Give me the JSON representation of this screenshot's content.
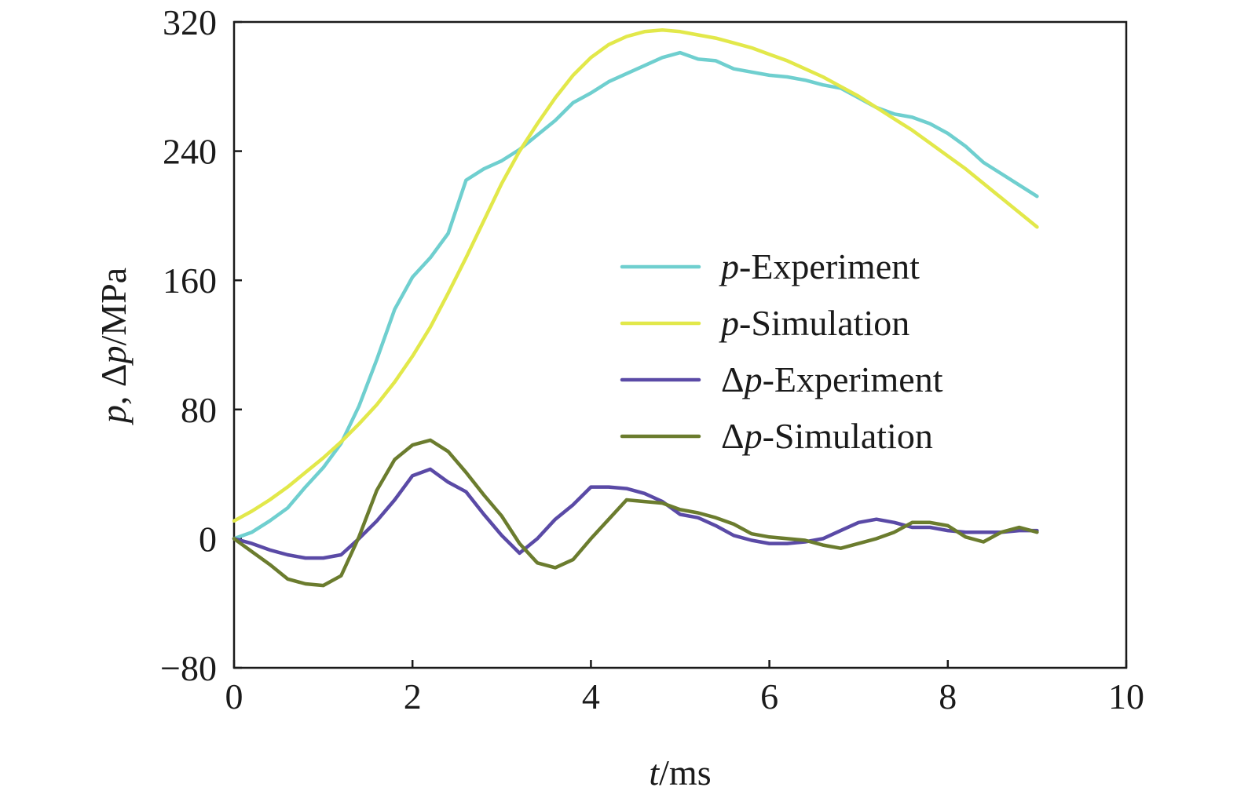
{
  "chart_data": {
    "type": "line",
    "xlabel_var": "t",
    "xlabel_unit": "/ms",
    "ylabel_var1": "p",
    "ylabel_sep": ", Δ",
    "ylabel_var2": "p",
    "ylabel_unit": "/MPa",
    "xlim": [
      0,
      10
    ],
    "ylim": [
      -80,
      320
    ],
    "x_ticks": [
      0,
      2,
      4,
      6,
      8,
      10
    ],
    "y_ticks": [
      -80,
      0,
      80,
      160,
      240,
      320
    ],
    "x_tick_labels": [
      "0",
      "2",
      "4",
      "6",
      "8",
      "10"
    ],
    "y_tick_labels": [
      "−80",
      "0",
      "80",
      "160",
      "240",
      "320"
    ],
    "grid": false,
    "legend_position": "center-right",
    "series": [
      {
        "name_prefix": "",
        "name_var": "p",
        "name_suffix": "-Experiment",
        "color": "#6fcfcf",
        "x": [
          0,
          0.2,
          0.4,
          0.6,
          0.8,
          1.0,
          1.2,
          1.4,
          1.6,
          1.8,
          2.0,
          2.2,
          2.4,
          2.6,
          2.8,
          3.0,
          3.2,
          3.4,
          3.6,
          3.8,
          4.0,
          4.2,
          4.4,
          4.6,
          4.8,
          5.0,
          5.2,
          5.4,
          5.6,
          5.8,
          6.0,
          6.2,
          6.4,
          6.6,
          6.8,
          7.0,
          7.2,
          7.4,
          7.6,
          7.8,
          8.0,
          8.2,
          8.4,
          8.6,
          8.8,
          9.0
        ],
        "y": [
          0,
          4,
          11,
          19,
          32,
          44,
          59,
          82,
          111,
          142,
          162,
          174,
          189,
          222,
          229,
          234,
          241,
          250,
          259,
          270,
          276,
          283,
          288,
          293,
          298,
          301,
          297,
          296,
          291,
          289,
          287,
          286,
          284,
          281,
          279,
          273,
          267,
          263,
          261,
          257,
          251,
          243,
          233,
          226,
          219,
          212
        ]
      },
      {
        "name_prefix": "",
        "name_var": "p",
        "name_suffix": "-Simulation",
        "color": "#e2e84a",
        "x": [
          0,
          0.2,
          0.4,
          0.6,
          0.8,
          1.0,
          1.2,
          1.4,
          1.6,
          1.8,
          2.0,
          2.2,
          2.4,
          2.6,
          2.8,
          3.0,
          3.2,
          3.4,
          3.6,
          3.8,
          4.0,
          4.2,
          4.4,
          4.6,
          4.8,
          5.0,
          5.2,
          5.4,
          5.6,
          5.8,
          6.0,
          6.2,
          6.4,
          6.6,
          6.8,
          7.0,
          7.2,
          7.4,
          7.6,
          7.8,
          8.0,
          8.2,
          8.4,
          8.6,
          8.8,
          9.0
        ],
        "y": [
          11,
          17,
          24,
          32,
          41,
          50,
          60,
          71,
          83,
          97,
          113,
          131,
          152,
          174,
          197,
          220,
          240,
          257,
          273,
          287,
          298,
          306,
          311,
          314,
          315,
          314,
          312,
          310,
          307,
          304,
          300,
          296,
          291,
          286,
          280,
          274,
          267,
          260,
          253,
          245,
          237,
          229,
          220,
          211,
          202,
          193
        ]
      },
      {
        "name_prefix": "Δ",
        "name_var": "p",
        "name_suffix": "-Experiment",
        "color": "#5a4aa6",
        "x": [
          0,
          0.2,
          0.4,
          0.6,
          0.8,
          1.0,
          1.2,
          1.4,
          1.6,
          1.8,
          2.0,
          2.2,
          2.4,
          2.6,
          2.8,
          3.0,
          3.2,
          3.4,
          3.6,
          3.8,
          4.0,
          4.2,
          4.4,
          4.6,
          4.8,
          5.0,
          5.2,
          5.4,
          5.6,
          5.8,
          6.0,
          6.2,
          6.4,
          6.6,
          6.8,
          7.0,
          7.2,
          7.4,
          7.6,
          7.8,
          8.0,
          8.2,
          8.4,
          8.6,
          8.8,
          9.0
        ],
        "y": [
          0,
          -3,
          -7,
          -10,
          -12,
          -12,
          -10,
          0,
          11,
          24,
          39,
          43,
          35,
          29,
          15,
          2,
          -9,
          0,
          12,
          21,
          32,
          32,
          31,
          28,
          23,
          15,
          13,
          8,
          2,
          -1,
          -3,
          -3,
          -2,
          0,
          5,
          10,
          12,
          10,
          7,
          7,
          5,
          4,
          4,
          4,
          5,
          5
        ]
      },
      {
        "name_prefix": "Δ",
        "name_var": "p",
        "name_suffix": "-Simulation",
        "color": "#6b7c2e",
        "x": [
          0,
          0.2,
          0.4,
          0.6,
          0.8,
          1.0,
          1.2,
          1.4,
          1.6,
          1.8,
          2.0,
          2.2,
          2.4,
          2.6,
          2.8,
          3.0,
          3.2,
          3.4,
          3.6,
          3.8,
          4.0,
          4.2,
          4.4,
          4.6,
          4.8,
          5.0,
          5.2,
          5.4,
          5.6,
          5.8,
          6.0,
          6.2,
          6.4,
          6.6,
          6.8,
          7.0,
          7.2,
          7.4,
          7.6,
          7.8,
          8.0,
          8.2,
          8.4,
          8.6,
          8.8,
          9.0
        ],
        "y": [
          0,
          -8,
          -16,
          -25,
          -28,
          -29,
          -23,
          1,
          30,
          49,
          58,
          61,
          54,
          41,
          27,
          14,
          -3,
          -15,
          -18,
          -13,
          0,
          12,
          24,
          23,
          22,
          18,
          16,
          13,
          9,
          3,
          1,
          0,
          -1,
          -4,
          -6,
          -3,
          0,
          4,
          10,
          10,
          8,
          1,
          -2,
          4,
          7,
          4
        ]
      }
    ]
  }
}
